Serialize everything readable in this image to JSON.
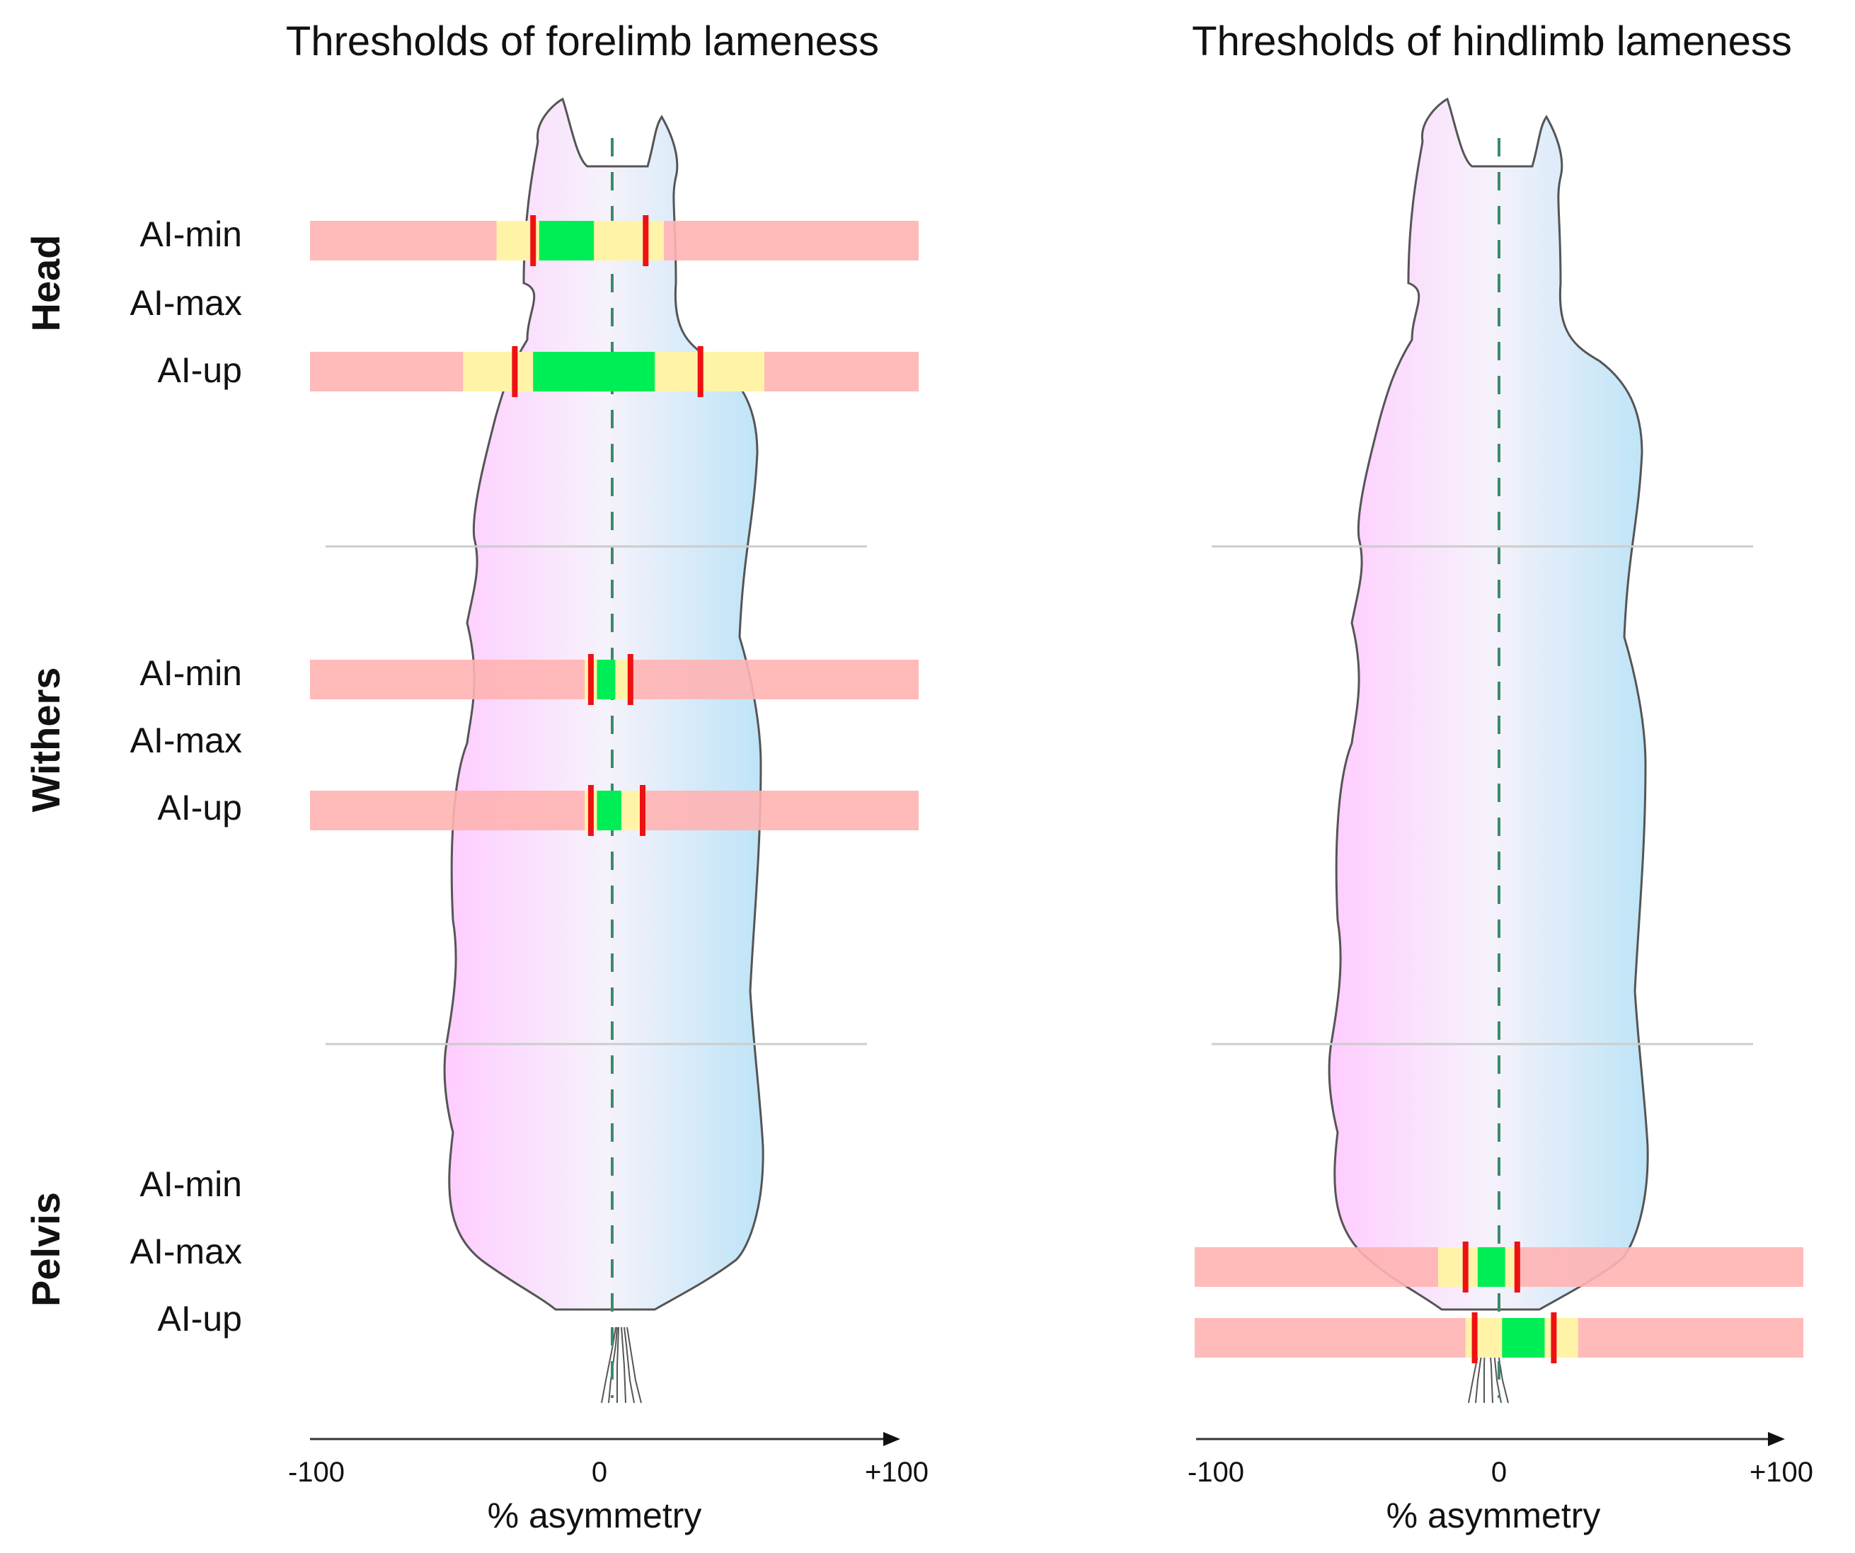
{
  "chart_data": [
    {
      "type": "range-bar",
      "title": "Thresholds of forelimb lameness",
      "xlabel": "% asymmetry",
      "xlim": [
        -100,
        100
      ],
      "xticks": [
        "-100",
        "0",
        "+100"
      ],
      "sections": [
        "Head",
        "Withers",
        "Pelvis"
      ],
      "rows": [
        "AI-min",
        "AI-max",
        "AI-up"
      ],
      "bars": [
        {
          "section": "Head",
          "row": "AI-min",
          "yellow": [
            -38,
            17
          ],
          "green": [
            -24,
            -6
          ],
          "thresholds": [
            -26,
            11
          ]
        },
        {
          "section": "Head",
          "row": "AI-up",
          "yellow": [
            -49,
            50
          ],
          "green": [
            -26,
            14
          ],
          "thresholds": [
            -32,
            29
          ]
        },
        {
          "section": "Withers",
          "row": "AI-min",
          "yellow": [
            -9,
            6
          ],
          "green": [
            -5,
            1
          ],
          "thresholds": [
            -7,
            6
          ]
        },
        {
          "section": "Withers",
          "row": "AI-up",
          "yellow": [
            -9,
            11
          ],
          "green": [
            -5,
            3
          ],
          "thresholds": [
            -7,
            10
          ]
        }
      ]
    },
    {
      "type": "range-bar",
      "title": "Thresholds of hindlimb lameness",
      "xlabel": "% asymmetry",
      "xlim": [
        -100,
        100
      ],
      "xticks": [
        "-100",
        "0",
        "+100"
      ],
      "sections": [
        "Head",
        "Withers",
        "Pelvis"
      ],
      "rows": [
        "AI-min",
        "AI-max",
        "AI-up"
      ],
      "bars": [
        {
          "section": "Pelvis",
          "row": "AI-max",
          "yellow": [
            -20,
            6
          ],
          "green": [
            -7,
            2
          ],
          "thresholds": [
            -11,
            6
          ]
        },
        {
          "section": "Pelvis",
          "row": "AI-up",
          "yellow": [
            -11,
            26
          ],
          "green": [
            1,
            15
          ],
          "thresholds": [
            -8,
            18
          ]
        }
      ]
    }
  ],
  "colors": {
    "range": "#ffb3b3",
    "yellow": "#fff3a8",
    "green": "#00ee55",
    "threshold": "#ee1111",
    "pink": "#ffccff",
    "blue": "#c2e6f8"
  },
  "icons": {
    "silhouette": "alpaca-silhouette-icon"
  }
}
